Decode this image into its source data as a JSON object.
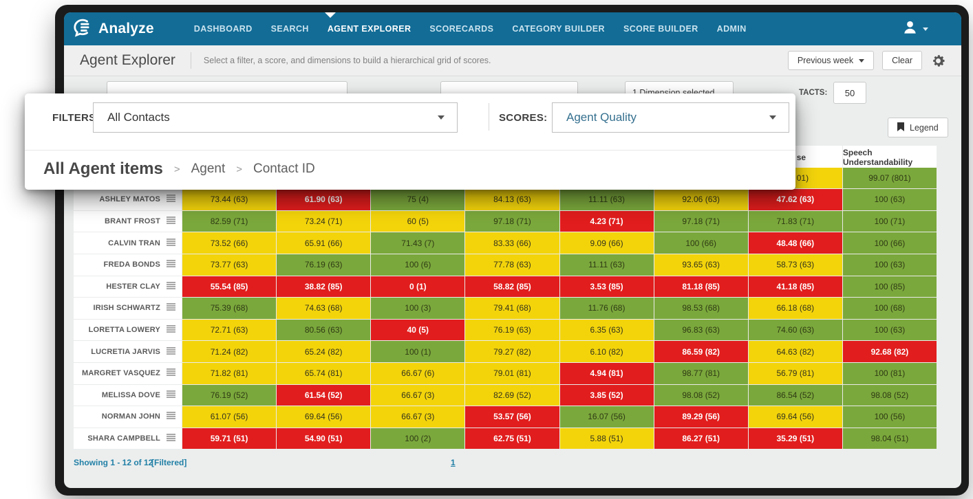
{
  "app": {
    "logo_text": "Analyze"
  },
  "navbar": {
    "items": [
      {
        "label": "DASHBOARD",
        "active": false
      },
      {
        "label": "SEARCH",
        "active": false
      },
      {
        "label": "AGENT EXPLORER",
        "active": true
      },
      {
        "label": "SCORECARDS",
        "active": false
      },
      {
        "label": "CATEGORY BUILDER",
        "active": false
      },
      {
        "label": "SCORE BUILDER",
        "active": false
      },
      {
        "label": "ADMIN",
        "active": false
      }
    ]
  },
  "header": {
    "title": "Agent Explorer",
    "subtitle": "Select a filter, a score, and dimensions to build a hierarchical grid of scores.",
    "period_button_label": "Previous week",
    "clear_button_label": "Clear"
  },
  "filter_bar": {
    "dimensions_value": "1 Dimension selected",
    "contacts_label_fragment": "TACTS:",
    "min_contacts_value": "50"
  },
  "toolbar": {
    "legend_button_label": "Legend"
  },
  "overlay": {
    "filters_label": "FILTERS:",
    "filters_value": "All Contacts",
    "scores_label": "SCORES:",
    "scores_value": "Agent Quality",
    "breadcrumb": [
      "All Agent items",
      "Agent",
      "Contact ID"
    ]
  },
  "table": {
    "headers": [
      {
        "t": ""
      },
      {
        "t": ""
      },
      {
        "t": ""
      },
      {
        "t": ""
      },
      {
        "t": ""
      },
      {
        "t": ""
      },
      {
        "t": "se",
        "cut": true
      },
      {
        "t": "Speech Understandability"
      }
    ],
    "summary_row": {
      "name": "",
      "cells": [
        {
          "v": "",
          "c": "w"
        },
        {
          "v": "",
          "c": "w"
        },
        {
          "v": "",
          "c": "w"
        },
        {
          "v": "",
          "c": "w"
        },
        {
          "v": "",
          "c": "w"
        },
        {
          "v": "",
          "c": "w"
        },
        {
          "v": "01)",
          "c": "y",
          "cut": true
        },
        {
          "v": "99.07 (801)",
          "c": "g"
        }
      ]
    },
    "rows": [
      {
        "name": "ASHLEY MATOS",
        "cells": [
          {
            "v": "73.44 (63)",
            "c": "y"
          },
          {
            "v": "61.90 (63)",
            "c": "r"
          },
          {
            "v": "75 (4)",
            "c": "g"
          },
          {
            "v": "84.13 (63)",
            "c": "y"
          },
          {
            "v": "11.11 (63)",
            "c": "g"
          },
          {
            "v": "92.06 (63)",
            "c": "y"
          },
          {
            "v": "47.62 (63)",
            "c": "r"
          },
          {
            "v": "100 (63)",
            "c": "g"
          }
        ]
      },
      {
        "name": "BRANT FROST",
        "cells": [
          {
            "v": "82.59 (71)",
            "c": "g"
          },
          {
            "v": "73.24 (71)",
            "c": "y"
          },
          {
            "v": "60 (5)",
            "c": "y"
          },
          {
            "v": "97.18 (71)",
            "c": "g"
          },
          {
            "v": "4.23 (71)",
            "c": "r"
          },
          {
            "v": "97.18 (71)",
            "c": "g"
          },
          {
            "v": "71.83 (71)",
            "c": "g"
          },
          {
            "v": "100 (71)",
            "c": "g"
          }
        ]
      },
      {
        "name": "CALVIN TRAN",
        "cells": [
          {
            "v": "73.52 (66)",
            "c": "y"
          },
          {
            "v": "65.91 (66)",
            "c": "y"
          },
          {
            "v": "71.43 (7)",
            "c": "g"
          },
          {
            "v": "83.33 (66)",
            "c": "y"
          },
          {
            "v": "9.09 (66)",
            "c": "y"
          },
          {
            "v": "100 (66)",
            "c": "g"
          },
          {
            "v": "48.48 (66)",
            "c": "r"
          },
          {
            "v": "100 (66)",
            "c": "g"
          }
        ]
      },
      {
        "name": "FREDA BONDS",
        "cells": [
          {
            "v": "73.77 (63)",
            "c": "y"
          },
          {
            "v": "76.19 (63)",
            "c": "g"
          },
          {
            "v": "100 (6)",
            "c": "g"
          },
          {
            "v": "77.78 (63)",
            "c": "y"
          },
          {
            "v": "11.11 (63)",
            "c": "g"
          },
          {
            "v": "93.65 (63)",
            "c": "y"
          },
          {
            "v": "58.73 (63)",
            "c": "y"
          },
          {
            "v": "100 (63)",
            "c": "g"
          }
        ]
      },
      {
        "name": "HESTER CLAY",
        "cells": [
          {
            "v": "55.54 (85)",
            "c": "r"
          },
          {
            "v": "38.82 (85)",
            "c": "r"
          },
          {
            "v": "0 (1)",
            "c": "r"
          },
          {
            "v": "58.82 (85)",
            "c": "r"
          },
          {
            "v": "3.53 (85)",
            "c": "r"
          },
          {
            "v": "81.18 (85)",
            "c": "r"
          },
          {
            "v": "41.18 (85)",
            "c": "r"
          },
          {
            "v": "100 (85)",
            "c": "g"
          }
        ]
      },
      {
        "name": "IRISH SCHWARTZ",
        "cells": [
          {
            "v": "75.39 (68)",
            "c": "g"
          },
          {
            "v": "74.63 (68)",
            "c": "y"
          },
          {
            "v": "100 (3)",
            "c": "g"
          },
          {
            "v": "79.41 (68)",
            "c": "y"
          },
          {
            "v": "11.76 (68)",
            "c": "g"
          },
          {
            "v": "98.53 (68)",
            "c": "g"
          },
          {
            "v": "66.18 (68)",
            "c": "y"
          },
          {
            "v": "100 (68)",
            "c": "g"
          }
        ]
      },
      {
        "name": "LORETTA LOWERY",
        "cells": [
          {
            "v": "72.71 (63)",
            "c": "y"
          },
          {
            "v": "80.56 (63)",
            "c": "g"
          },
          {
            "v": "40 (5)",
            "c": "r"
          },
          {
            "v": "76.19 (63)",
            "c": "y"
          },
          {
            "v": "6.35 (63)",
            "c": "y"
          },
          {
            "v": "96.83 (63)",
            "c": "g"
          },
          {
            "v": "74.60 (63)",
            "c": "g"
          },
          {
            "v": "100 (63)",
            "c": "g"
          }
        ]
      },
      {
        "name": "LUCRETIA JARVIS",
        "cells": [
          {
            "v": "71.24 (82)",
            "c": "y"
          },
          {
            "v": "65.24 (82)",
            "c": "y"
          },
          {
            "v": "100 (1)",
            "c": "g"
          },
          {
            "v": "79.27 (82)",
            "c": "y"
          },
          {
            "v": "6.10 (82)",
            "c": "y"
          },
          {
            "v": "86.59 (82)",
            "c": "r"
          },
          {
            "v": "64.63 (82)",
            "c": "y"
          },
          {
            "v": "92.68 (82)",
            "c": "r"
          }
        ]
      },
      {
        "name": "MARGRET VASQUEZ",
        "cells": [
          {
            "v": "71.82 (81)",
            "c": "y"
          },
          {
            "v": "65.74 (81)",
            "c": "y"
          },
          {
            "v": "66.67 (6)",
            "c": "y"
          },
          {
            "v": "79.01 (81)",
            "c": "y"
          },
          {
            "v": "4.94 (81)",
            "c": "r"
          },
          {
            "v": "98.77 (81)",
            "c": "g"
          },
          {
            "v": "56.79 (81)",
            "c": "y"
          },
          {
            "v": "100 (81)",
            "c": "g"
          }
        ]
      },
      {
        "name": "MELISSA DOVE",
        "cells": [
          {
            "v": "76.19 (52)",
            "c": "g"
          },
          {
            "v": "61.54 (52)",
            "c": "r"
          },
          {
            "v": "66.67 (3)",
            "c": "y"
          },
          {
            "v": "82.69 (52)",
            "c": "y"
          },
          {
            "v": "3.85 (52)",
            "c": "r"
          },
          {
            "v": "98.08 (52)",
            "c": "g"
          },
          {
            "v": "86.54 (52)",
            "c": "g"
          },
          {
            "v": "98.08 (52)",
            "c": "g"
          }
        ]
      },
      {
        "name": "NORMAN JOHN",
        "cells": [
          {
            "v": "61.07 (56)",
            "c": "y"
          },
          {
            "v": "69.64 (56)",
            "c": "y"
          },
          {
            "v": "66.67 (3)",
            "c": "y"
          },
          {
            "v": "53.57 (56)",
            "c": "r"
          },
          {
            "v": "16.07 (56)",
            "c": "g"
          },
          {
            "v": "89.29 (56)",
            "c": "r"
          },
          {
            "v": "69.64 (56)",
            "c": "y"
          },
          {
            "v": "100 (56)",
            "c": "g"
          }
        ]
      },
      {
        "name": "SHARA CAMPBELL",
        "cells": [
          {
            "v": "59.71 (51)",
            "c": "r"
          },
          {
            "v": "54.90 (51)",
            "c": "r"
          },
          {
            "v": "100 (2)",
            "c": "g"
          },
          {
            "v": "62.75 (51)",
            "c": "r"
          },
          {
            "v": "5.88 (51)",
            "c": "y"
          },
          {
            "v": "86.27 (51)",
            "c": "r"
          },
          {
            "v": "35.29 (51)",
            "c": "r"
          },
          {
            "v": "98.04 (51)",
            "c": "g"
          }
        ]
      }
    ]
  },
  "pagination": {
    "showing_text": "Showing 1 - 12 of 12",
    "filtered_text": "[Filtered]",
    "page": "1"
  },
  "colors": {
    "navbar": "#126c96",
    "yellow": "#f3d40b",
    "green": "#7ba83c",
    "red": "#e11d1d",
    "accent": "#2280a6"
  }
}
